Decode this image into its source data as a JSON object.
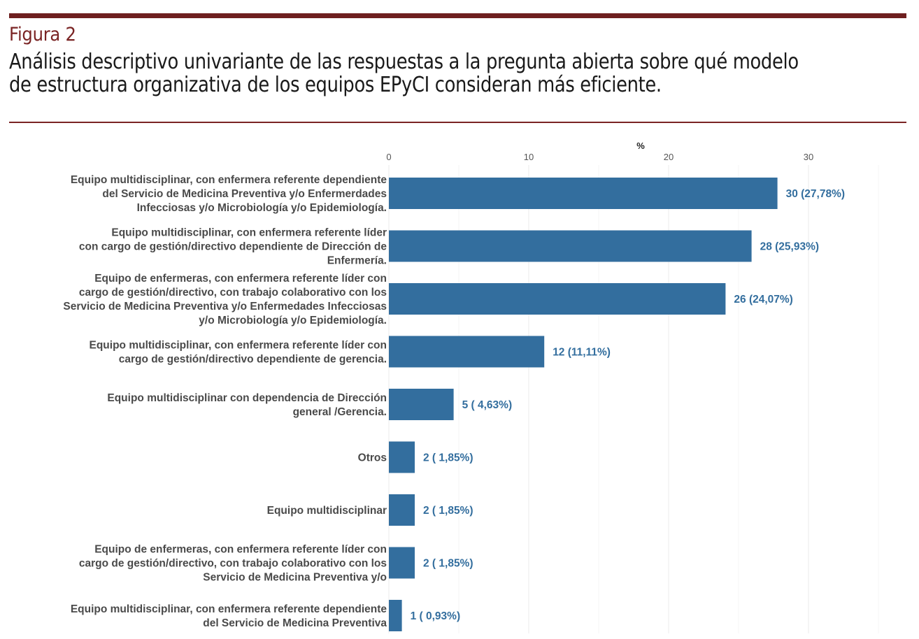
{
  "figure": {
    "label": "Figura 2",
    "title_line1": "Análisis descriptivo univariante de las respuestas a la pregunta abierta sobre qué modelo",
    "title_line2": "de estructura organizativa de los equipos EPyCI consideran más eficiente."
  },
  "colors": {
    "bar": "#336e9e",
    "value_label": "#336e9e",
    "category_text": "#4a4a4a",
    "rule": "#6e1f1f",
    "gridline": "#ebebeb"
  },
  "chart_data": {
    "type": "bar",
    "orientation": "horizontal",
    "title": "",
    "xlabel": "%",
    "xlabel_position": "top",
    "ylabel": "",
    "xlim": [
      0,
      35
    ],
    "x_ticks": [
      0,
      10,
      20,
      30
    ],
    "grid": true,
    "categories": [
      [
        "Equipo multidisciplinar, con enfermera referente dependiente",
        "del Servicio de Medicina Preventiva y/o Enfermerdades",
        "Infecciosas y/o Microbiología y/o Epidemiología."
      ],
      [
        "Equipo multidisciplinar, con enfermera referente líder",
        "con cargo de gestión/directivo dependiente de Dirección de",
        "Enfermería."
      ],
      [
        "Equipo de enfermeras, con enfermera referente líder con",
        "cargo de gestión/directivo, con trabajo colaborativo con los",
        "Servicio de Medicina Preventiva y/o Enfermedades Infecciosas",
        "y/o Microbiología y/o Epidemiología."
      ],
      [
        "Equipo multidisciplinar, con enfermera referente líder con",
        "cargo de gestión/directivo dependiente de gerencia."
      ],
      [
        "Equipo multidisciplinar con dependencia de Dirección",
        "general /Gerencia."
      ],
      [
        "Otros"
      ],
      [
        "Equipo multidisciplinar"
      ],
      [
        "Equipo de enfermeras, con enfermera referente líder con",
        "cargo de gestión/directivo, con trabajo colaborativo con los",
        "Servicio de Medicina Preventiva y/o"
      ],
      [
        "Equipo multidisciplinar, con enfermera referente dependiente",
        "del Servicio de Medicina Preventiva"
      ]
    ],
    "values": [
      27.78,
      25.93,
      24.07,
      11.11,
      4.63,
      1.85,
      1.85,
      1.85,
      0.93
    ],
    "counts": [
      30,
      28,
      26,
      12,
      5,
      2,
      2,
      2,
      1
    ],
    "data_labels": [
      "30 (27,78%)",
      "28 (25,93%)",
      "26 (24,07%)",
      "12 (11,11%)",
      "5 ( 4,63%)",
      "2 ( 1,85%)",
      "2 ( 1,85%)",
      "2 ( 1,85%)",
      "1 ( 0,93%)"
    ]
  }
}
